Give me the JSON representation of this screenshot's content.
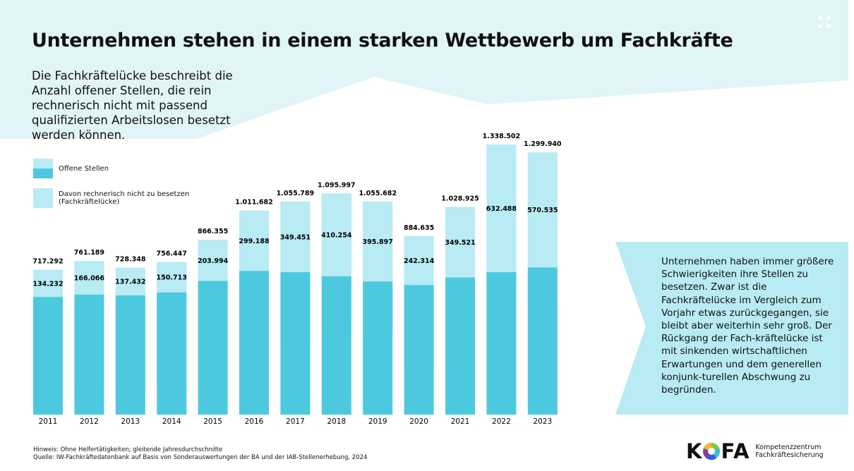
{
  "header": {
    "title": "Unternehmen stehen in einem starken Wettbewerb um Fachkräfte",
    "subtitle": "Die Fachkräftelücke beschreibt die Anzahl offener Stellen, die rein rechnerisch nicht mit passend qualifizierten Arbeitslosen besetzt werden können.",
    "expand_icon": "expand-arrows-icon"
  },
  "colors": {
    "background_shape": "#e1f4f8",
    "offene_stellen": "#4dc9df",
    "fachkraefteluecke": "#b8ebf3",
    "callout": "#b8ebf3"
  },
  "chart_data": {
    "type": "bar",
    "stacked": true,
    "categories": [
      "2011",
      "2012",
      "2013",
      "2014",
      "2015",
      "2016",
      "2017",
      "2018",
      "2019",
      "2020",
      "2021",
      "2022",
      "2023"
    ],
    "series": [
      {
        "name": "Offene Stellen",
        "values": [
          717292,
          761189,
          728348,
          756447,
          866355,
          1011682,
          1055789,
          1095997,
          1055682,
          884635,
          1028925,
          1338502,
          1299940
        ],
        "labels": [
          "717.292",
          "761.189",
          "728.348",
          "756.447",
          "866.355",
          "1.011.682",
          "1.055.789",
          "1.095.997",
          "1.055.682",
          "884.635",
          "1.028.925",
          "1.338.502",
          "1.299.940"
        ]
      },
      {
        "name": "Davon rechnerisch nicht zu besetzen (Fachkräftelücke)",
        "values": [
          134232,
          166066,
          137432,
          150713,
          203994,
          299188,
          349451,
          410254,
          395897,
          242314,
          349521,
          632488,
          570535
        ],
        "labels": [
          "134.232",
          "166.066",
          "137.432",
          "150.713",
          "203.994",
          "299.188",
          "349.451",
          "410.254",
          "395.897",
          "242.314",
          "349.521",
          "632.488",
          "570.535"
        ]
      }
    ],
    "legend": [
      "Offene Stellen",
      "Davon rechnerisch nicht zu besetzen (Fachkräftelücke)"
    ],
    "legend_position": "top-left",
    "grid": false
  },
  "callout": "Unternehmen haben immer größere Schwierigkeiten ihre Stellen zu besetzen. Zwar ist die Fachkräftelücke im Vergleich zum Vorjahr etwas zurückgegangen, sie bleibt aber weiterhin sehr groß. Der Rückgang der Fach-kräftelücke ist mit sinkenden wirtschaftlichen Erwartungen und dem generellen konjunk-turellen Abschwung zu begründen.",
  "footer": {
    "note": "Hinweis: Ohne Helfertätigkeiten; gleitende Jahresdurchschnitte",
    "source": "Quelle: IW-Fachkräftedatenbank auf Basis von Sonderauswertungen der BA und der IAB-Stellenerhebung, 2024"
  },
  "logo": {
    "word": "KOFA",
    "line1": "Kompetenzzentrum",
    "line2": "Fachkräftesicherung"
  }
}
